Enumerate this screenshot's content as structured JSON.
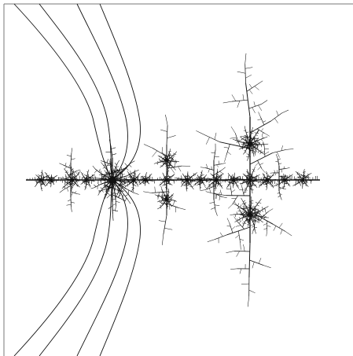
{
  "figure": {
    "description_visible_text": "",
    "colors": {
      "background": "#ffffff",
      "frame": "#777777",
      "ink": "#111111"
    },
    "frame_edges": [
      "top",
      "left"
    ],
    "curve_count": 8
  }
}
